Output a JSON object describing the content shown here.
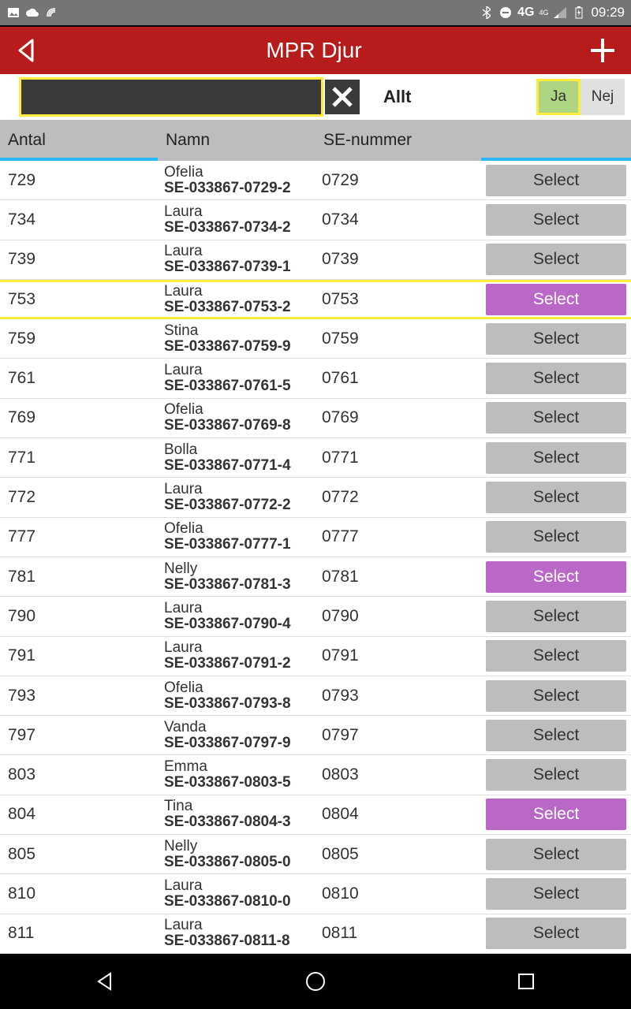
{
  "status": {
    "time": "09:29",
    "network": "4G",
    "network_sup": "4G"
  },
  "header": {
    "title": "MPR Djur"
  },
  "filter": {
    "search_value": "",
    "label": "Allt",
    "ja": "Ja",
    "nej": "Nej"
  },
  "columns": {
    "antal": "Antal",
    "namn": "Namn",
    "se": "SE-nummer"
  },
  "select_label": "Select",
  "colors": {
    "header_bg": "#b71c1c",
    "highlight_border": "#ffeb3b",
    "selected_btn": "#ba68c8",
    "default_btn": "#bdbdbd",
    "toggle_active": "#aed581",
    "underline": "#29b6f6"
  },
  "rows": [
    {
      "antal": "729",
      "name": "Ofelia",
      "id": "SE-033867-0729-2",
      "se": "0729",
      "selected": false,
      "highlighted": false
    },
    {
      "antal": "734",
      "name": "Laura",
      "id": "SE-033867-0734-2",
      "se": "0734",
      "selected": false,
      "highlighted": false
    },
    {
      "antal": "739",
      "name": "Laura",
      "id": "SE-033867-0739-1",
      "se": "0739",
      "selected": false,
      "highlighted": false
    },
    {
      "antal": "753",
      "name": "Laura",
      "id": "SE-033867-0753-2",
      "se": "0753",
      "selected": true,
      "highlighted": true
    },
    {
      "antal": "759",
      "name": "Stina",
      "id": "SE-033867-0759-9",
      "se": "0759",
      "selected": false,
      "highlighted": false
    },
    {
      "antal": "761",
      "name": "Laura",
      "id": "SE-033867-0761-5",
      "se": "0761",
      "selected": false,
      "highlighted": false
    },
    {
      "antal": "769",
      "name": "Ofelia",
      "id": "SE-033867-0769-8",
      "se": "0769",
      "selected": false,
      "highlighted": false
    },
    {
      "antal": "771",
      "name": "Bolla",
      "id": "SE-033867-0771-4",
      "se": "0771",
      "selected": false,
      "highlighted": false
    },
    {
      "antal": "772",
      "name": "Laura",
      "id": "SE-033867-0772-2",
      "se": "0772",
      "selected": false,
      "highlighted": false
    },
    {
      "antal": "777",
      "name": "Ofelia",
      "id": "SE-033867-0777-1",
      "se": "0777",
      "selected": false,
      "highlighted": false
    },
    {
      "antal": "781",
      "name": "Nelly",
      "id": "SE-033867-0781-3",
      "se": "0781",
      "selected": true,
      "highlighted": false
    },
    {
      "antal": "790",
      "name": "Laura",
      "id": "SE-033867-0790-4",
      "se": "0790",
      "selected": false,
      "highlighted": false
    },
    {
      "antal": "791",
      "name": "Laura",
      "id": "SE-033867-0791-2",
      "se": "0791",
      "selected": false,
      "highlighted": false
    },
    {
      "antal": "793",
      "name": "Ofelia",
      "id": "SE-033867-0793-8",
      "se": "0793",
      "selected": false,
      "highlighted": false
    },
    {
      "antal": "797",
      "name": "Vanda",
      "id": "SE-033867-0797-9",
      "se": "0797",
      "selected": false,
      "highlighted": false
    },
    {
      "antal": "803",
      "name": "Emma",
      "id": "SE-033867-0803-5",
      "se": "0803",
      "selected": false,
      "highlighted": false
    },
    {
      "antal": "804",
      "name": "Tina",
      "id": "SE-033867-0804-3",
      "se": "0804",
      "selected": true,
      "highlighted": false
    },
    {
      "antal": "805",
      "name": "Nelly",
      "id": "SE-033867-0805-0",
      "se": "0805",
      "selected": false,
      "highlighted": false
    },
    {
      "antal": "810",
      "name": "Laura",
      "id": "SE-033867-0810-0",
      "se": "0810",
      "selected": false,
      "highlighted": false
    },
    {
      "antal": "811",
      "name": "Laura",
      "id": "SE-033867-0811-8",
      "se": "0811",
      "selected": false,
      "highlighted": false
    }
  ]
}
